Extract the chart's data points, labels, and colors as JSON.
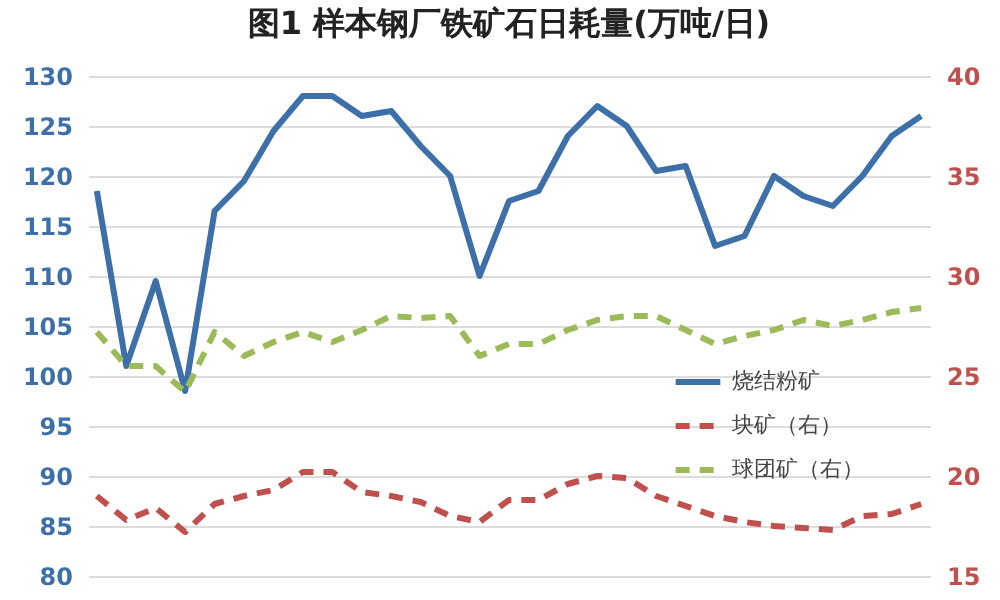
{
  "chart_data": {
    "type": "line",
    "title": "图1 样本钢厂铁矿石日耗量(万吨/日)",
    "categories": [
      null,
      null,
      null,
      null,
      null,
      null,
      null,
      null,
      null,
      null,
      null,
      null,
      null,
      null,
      null,
      null,
      null,
      null,
      null,
      null,
      null,
      null,
      null,
      null,
      null,
      null,
      null,
      null,
      null
    ],
    "series": [
      {
        "name": "烧结粉矿",
        "color": "#3d6fa8",
        "line_style": "solid",
        "values": [
          118.5,
          101,
          109.5,
          98.5,
          116.5,
          119.5,
          124.5,
          128,
          128,
          126,
          126.5,
          123,
          120,
          110,
          117.5,
          118.5,
          124,
          127,
          125,
          120.5,
          121,
          113,
          114,
          120,
          118,
          117,
          120,
          124,
          126
        ]
      },
      {
        "name": "块矿（右）",
        "color": "#c0504d",
        "line_style": "dashed",
        "axis": "y2",
        "values": [
          19.0,
          17.8,
          18.4,
          17.2,
          18.6,
          19.0,
          19.3,
          20.2,
          20.2,
          19.2,
          19.0,
          18.7,
          18.0,
          17.7,
          18.8,
          18.8,
          19.6,
          20.0,
          19.9,
          19.0,
          18.5,
          18.0,
          17.7,
          17.5,
          17.4,
          17.3,
          18.0,
          18.1,
          18.6
        ]
      },
      {
        "name": "球团矿（右）",
        "color": "#9bbb59",
        "line_style": "dashed",
        "axis": "y2",
        "values": [
          27.2,
          25.5,
          25.5,
          24.2,
          27.2,
          26.0,
          26.7,
          27.2,
          26.7,
          27.3,
          28.0,
          27.9,
          28.0,
          26.0,
          26.6,
          26.6,
          27.3,
          27.8,
          28.0,
          28.0,
          27.3,
          26.6,
          27.0,
          27.3,
          27.8,
          27.5,
          27.8,
          28.2,
          28.4
        ]
      }
    ],
    "ylim": [
      80,
      130
    ],
    "yticks": [
      80,
      85,
      90,
      95,
      100,
      105,
      110,
      115,
      120,
      125,
      130
    ],
    "y2lim": [
      15,
      40
    ],
    "y2ticks": [
      15,
      20,
      25,
      30,
      35,
      40
    ],
    "grid": "y",
    "legend": "right",
    "marker": "none"
  }
}
